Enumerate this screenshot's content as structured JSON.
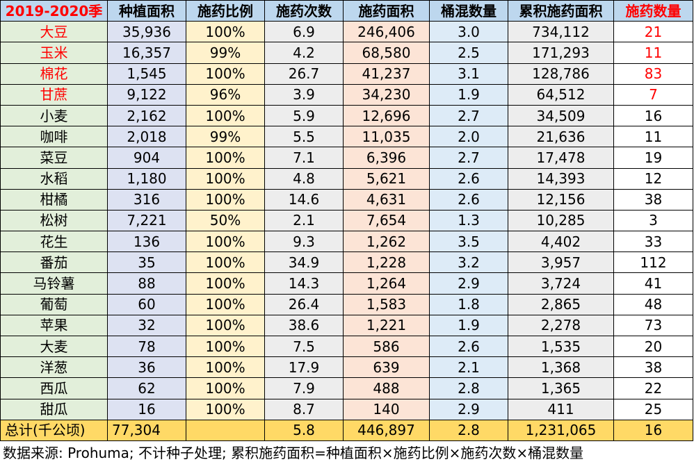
{
  "headers": [
    "2019-2020季",
    "种植面积",
    "施药比例",
    "施药次数",
    "施药面积",
    "桶混数量",
    "累积施药面积",
    "施药数量"
  ],
  "rows": [
    {
      "crop": "大豆",
      "area": "35,936",
      "ratio": "100%",
      "times": "6.9",
      "spray": "246,406",
      "mix": "3.0",
      "cum": "734,112",
      "qty": "21",
      "hl": true
    },
    {
      "crop": "玉米",
      "area": "16,357",
      "ratio": "99%",
      "times": "4.2",
      "spray": "68,580",
      "mix": "2.5",
      "cum": "171,293",
      "qty": "11",
      "hl": true
    },
    {
      "crop": "棉花",
      "area": "1,545",
      "ratio": "100%",
      "times": "26.7",
      "spray": "41,237",
      "mix": "3.1",
      "cum": "128,786",
      "qty": "83",
      "hl": true
    },
    {
      "crop": "甘蔗",
      "area": "9,122",
      "ratio": "96%",
      "times": "3.9",
      "spray": "34,230",
      "mix": "1.9",
      "cum": "64,512",
      "qty": "7",
      "hl": true
    },
    {
      "crop": "小麦",
      "area": "2,162",
      "ratio": "100%",
      "times": "5.9",
      "spray": "12,696",
      "mix": "2.7",
      "cum": "34,509",
      "qty": "16",
      "hl": false
    },
    {
      "crop": "咖啡",
      "area": "2,018",
      "ratio": "99%",
      "times": "5.5",
      "spray": "11,035",
      "mix": "2.0",
      "cum": "21,636",
      "qty": "11",
      "hl": false
    },
    {
      "crop": "菜豆",
      "area": "904",
      "ratio": "100%",
      "times": "7.1",
      "spray": "6,396",
      "mix": "2.7",
      "cum": "17,478",
      "qty": "19",
      "hl": false
    },
    {
      "crop": "水稻",
      "area": "1,180",
      "ratio": "100%",
      "times": "4.8",
      "spray": "5,621",
      "mix": "2.6",
      "cum": "14,393",
      "qty": "12",
      "hl": false
    },
    {
      "crop": "柑橘",
      "area": "316",
      "ratio": "100%",
      "times": "14.6",
      "spray": "4,631",
      "mix": "2.6",
      "cum": "12,156",
      "qty": "38",
      "hl": false
    },
    {
      "crop": "松树",
      "area": "7,221",
      "ratio": "50%",
      "times": "2.1",
      "spray": "7,654",
      "mix": "1.3",
      "cum": "10,285",
      "qty": "3",
      "hl": false
    },
    {
      "crop": "花生",
      "area": "136",
      "ratio": "100%",
      "times": "9.3",
      "spray": "1,262",
      "mix": "3.5",
      "cum": "4,402",
      "qty": "33",
      "hl": false
    },
    {
      "crop": "番茄",
      "area": "35",
      "ratio": "100%",
      "times": "34.9",
      "spray": "1,228",
      "mix": "3.2",
      "cum": "3,957",
      "qty": "112",
      "hl": false
    },
    {
      "crop": "马铃薯",
      "area": "88",
      "ratio": "100%",
      "times": "14.3",
      "spray": "1,264",
      "mix": "2.9",
      "cum": "3,724",
      "qty": "41",
      "hl": false
    },
    {
      "crop": "葡萄",
      "area": "60",
      "ratio": "100%",
      "times": "26.4",
      "spray": "1,583",
      "mix": "1.8",
      "cum": "2,865",
      "qty": "48",
      "hl": false
    },
    {
      "crop": "苹果",
      "area": "32",
      "ratio": "100%",
      "times": "38.6",
      "spray": "1,221",
      "mix": "1.9",
      "cum": "2,278",
      "qty": "73",
      "hl": false
    },
    {
      "crop": "大麦",
      "area": "78",
      "ratio": "100%",
      "times": "7.5",
      "spray": "586",
      "mix": "2.6",
      "cum": "1,535",
      "qty": "20",
      "hl": false
    },
    {
      "crop": "洋葱",
      "area": "36",
      "ratio": "100%",
      "times": "17.9",
      "spray": "639",
      "mix": "2.1",
      "cum": "1,368",
      "qty": "38",
      "hl": false
    },
    {
      "crop": "西瓜",
      "area": "62",
      "ratio": "100%",
      "times": "7.9",
      "spray": "488",
      "mix": "2.8",
      "cum": "1,365",
      "qty": "22",
      "hl": false
    },
    {
      "crop": "甜瓜",
      "area": "16",
      "ratio": "100%",
      "times": "8.7",
      "spray": "140",
      "mix": "2.9",
      "cum": "411",
      "qty": "25",
      "hl": false
    }
  ],
  "total": {
    "label": "总计(千公顷)",
    "area": "77,304",
    "ratio": "",
    "times": "5.8",
    "spray": "446,897",
    "mix": "2.8",
    "cum": "1,231,065",
    "qty": "16"
  },
  "footnote": "数据来源: Prohuma; 不计种子处理; 累积施药面积=种植面积×施药比例×施药次数×桶混数量",
  "colors": {
    "highlight": "#ff0000",
    "header_bg": "#bdd7ee",
    "total_bg": "#ffd966"
  }
}
